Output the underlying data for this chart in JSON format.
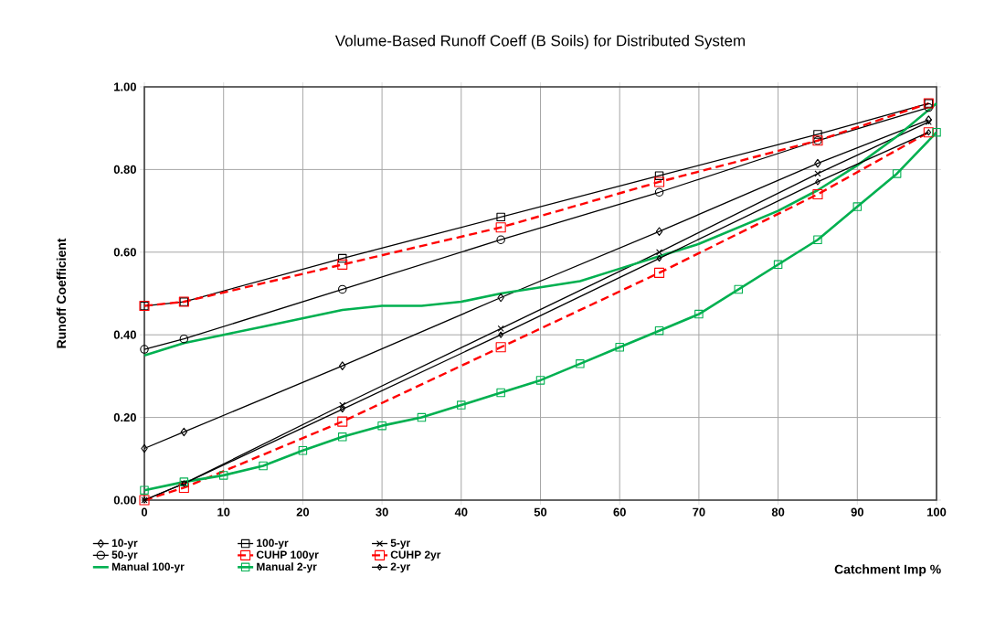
{
  "chart_data": {
    "type": "line",
    "title": "Volume-Based Runoff Coeff  (B Soils) for Distributed System",
    "xlabel": "Catchment Imp %",
    "ylabel": "Runoff Coefficient",
    "xlim": [
      0,
      100
    ],
    "ylim": [
      0,
      1
    ],
    "xticks": [
      0,
      10,
      20,
      30,
      40,
      50,
      60,
      70,
      80,
      90,
      100
    ],
    "yticks": [
      {
        "value": 0,
        "label": "0.00"
      },
      {
        "value": 0.2,
        "label": "0.20"
      },
      {
        "value": 0.4,
        "label": "0.40"
      },
      {
        "value": 0.6,
        "label": "0.60"
      },
      {
        "value": 0.8,
        "label": "0.80"
      },
      {
        "value": 1,
        "label": "1.00"
      }
    ],
    "grid": true,
    "legend": "bottom",
    "series": [
      {
        "name": "10-yr",
        "color": "#000000",
        "marker": "diamond",
        "line_style": "solid",
        "x": [
          0,
          5,
          25,
          45,
          65,
          85,
          99
        ],
        "values": [
          0.125,
          0.165,
          0.325,
          0.49,
          0.65,
          0.815,
          0.92
        ]
      },
      {
        "name": "100-yr",
        "color": "#000000",
        "marker": "square",
        "line_style": "solid",
        "x": [
          0,
          5,
          25,
          45,
          65,
          85,
          99
        ],
        "values": [
          0.47,
          0.48,
          0.585,
          0.685,
          0.785,
          0.885,
          0.96
        ]
      },
      {
        "name": "5-yr",
        "color": "#000000",
        "marker": "cross",
        "line_style": "solid",
        "x": [
          0,
          5,
          25,
          45,
          65,
          85,
          99
        ],
        "values": [
          0.0,
          0.04,
          0.23,
          0.415,
          0.6,
          0.79,
          0.915
        ]
      },
      {
        "name": "50-yr",
        "color": "#000000",
        "marker": "circle",
        "line_style": "solid",
        "x": [
          0,
          5,
          25,
          45,
          65,
          85,
          99
        ],
        "values": [
          0.365,
          0.39,
          0.51,
          0.63,
          0.745,
          0.87,
          0.95
        ]
      },
      {
        "name": "CUHP 100yr",
        "color": "#ff0000",
        "marker": "square",
        "line_style": "dashed",
        "x": [
          0,
          5,
          25,
          45,
          65,
          85,
          99
        ],
        "values": [
          0.47,
          0.48,
          0.57,
          0.66,
          0.77,
          0.87,
          0.96
        ]
      },
      {
        "name": "CUHP 2yr",
        "color": "#ff0000",
        "marker": "square",
        "line_style": "dashed",
        "x": [
          0,
          5,
          25,
          45,
          65,
          85,
          99
        ],
        "values": [
          0.0,
          0.03,
          0.19,
          0.37,
          0.55,
          0.74,
          0.89
        ]
      },
      {
        "name": "Manual 100-yr",
        "color": "#00b050",
        "marker": "none",
        "line_style": "solid",
        "x": [
          0,
          5,
          10,
          15,
          20,
          25,
          30,
          35,
          40,
          45,
          50,
          55,
          60,
          65,
          70,
          75,
          80,
          85,
          90,
          95,
          100
        ],
        "values": [
          0.35,
          0.38,
          0.4,
          0.42,
          0.44,
          0.46,
          0.47,
          0.47,
          0.48,
          0.5,
          0.515,
          0.53,
          0.56,
          0.59,
          0.62,
          0.66,
          0.7,
          0.75,
          0.81,
          0.88,
          0.96
        ]
      },
      {
        "name": "Manual 2-yr",
        "color": "#00b050",
        "marker": "square",
        "line_style": "solid",
        "x": [
          0,
          5,
          10,
          15,
          20,
          25,
          30,
          35,
          40,
          45,
          50,
          55,
          60,
          65,
          70,
          75,
          80,
          85,
          90,
          95,
          100
        ],
        "values": [
          0.024,
          0.044,
          0.06,
          0.083,
          0.12,
          0.153,
          0.18,
          0.2,
          0.23,
          0.26,
          0.29,
          0.33,
          0.37,
          0.41,
          0.45,
          0.51,
          0.57,
          0.63,
          0.71,
          0.79,
          0.89
        ]
      },
      {
        "name": "2-yr",
        "color": "#000000",
        "marker": "diamond",
        "line_style": "solid",
        "x": [
          0,
          5,
          25,
          45,
          65,
          85,
          99
        ],
        "values": [
          0.0,
          0.04,
          0.22,
          0.4,
          0.585,
          0.77,
          0.89
        ]
      }
    ]
  }
}
